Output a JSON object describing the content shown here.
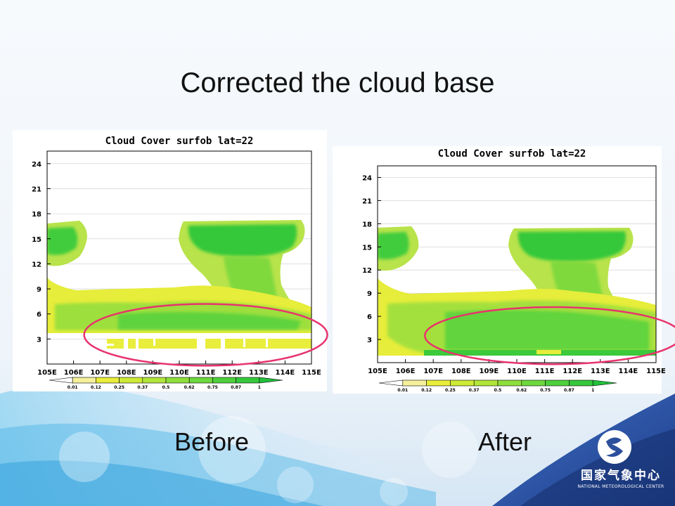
{
  "slide": {
    "title": "Corrected the cloud base",
    "before_label": "Before",
    "after_label": "After",
    "accent_color": "#2b4f9c",
    "highlight_color": "#e8336d"
  },
  "logo": {
    "name_cn": "国家气象中心",
    "name_en": "NATIONAL METEOROLOGICAL CENTER",
    "icon": "nmc-emblem-icon"
  },
  "chart_data": [
    {
      "type": "heatmap",
      "panel": "Before",
      "title": "Cloud Cover surfob lat=22",
      "x_ticks": [
        "105E",
        "106E",
        "107E",
        "108E",
        "109E",
        "110E",
        "111E",
        "112E",
        "113E",
        "114E",
        "115E"
      ],
      "y_ticks": [
        3,
        6,
        9,
        12,
        15,
        18,
        21,
        24
      ],
      "xlim": [
        105,
        115
      ],
      "ylim": [
        0,
        25.5
      ],
      "colorbar": {
        "labels": [
          "0.01",
          "0.12",
          "0.25",
          "0.37",
          "0.5",
          "0.62",
          "0.75",
          "0.87",
          "1"
        ],
        "colors": [
          "#ffffff",
          "#f5f09a",
          "#e8ee3a",
          "#cdea36",
          "#b2e53a",
          "#8fdf3c",
          "#6dd83d",
          "#4ed03c",
          "#35c83a",
          "#22c03a"
        ]
      },
      "cloud_regions": [
        {
          "lon": [
            105.1,
            106.5
          ],
          "height": [
            13.5,
            17.0
          ],
          "cover": 0.85
        },
        {
          "lon": [
            110.6,
            114.4
          ],
          "height": [
            12.5,
            17.0
          ],
          "cover": 0.87
        },
        {
          "lon": [
            105.0,
            115.0
          ],
          "height": [
            4.0,
            9.0
          ],
          "cover": 0.5
        },
        {
          "lon": [
            107.0,
            115.0
          ],
          "height": [
            4.0,
            6.5
          ],
          "cover": 0.6
        },
        {
          "lon": [
            107.2,
            115.0
          ],
          "height": [
            1.5,
            3.0
          ],
          "cover": 0.2
        }
      ],
      "highlight_ellipse": {
        "lon_center": 111.0,
        "height_center": 3.5,
        "lon_radius": 4.6,
        "height_radius": 3.7
      }
    },
    {
      "type": "heatmap",
      "panel": "After",
      "title": "Cloud Cover surfob lat=22",
      "x_ticks": [
        "105E",
        "106E",
        "107E",
        "108E",
        "109E",
        "110E",
        "111E",
        "112E",
        "113E",
        "114E",
        "115E"
      ],
      "y_ticks": [
        3,
        6,
        9,
        12,
        15,
        18,
        21,
        24
      ],
      "xlim": [
        105,
        115
      ],
      "ylim": [
        0,
        25.5
      ],
      "colorbar": {
        "labels": [
          "0.01",
          "0.12",
          "0.25",
          "0.37",
          "0.5",
          "0.62",
          "0.75",
          "0.87",
          "1"
        ],
        "colors": [
          "#ffffff",
          "#f5f09a",
          "#e8ee3a",
          "#cdea36",
          "#b2e53a",
          "#8fdf3c",
          "#6dd83d",
          "#4ed03c",
          "#35c83a",
          "#22c03a"
        ]
      },
      "cloud_regions": [
        {
          "lon": [
            105.0,
            106.5
          ],
          "height": [
            13.0,
            17.0
          ],
          "cover": 0.85
        },
        {
          "lon": [
            110.7,
            114.3
          ],
          "height": [
            12.5,
            17.0
          ],
          "cover": 0.87
        },
        {
          "lon": [
            105.0,
            115.0
          ],
          "height": [
            1.5,
            9.0
          ],
          "cover": 0.5
        },
        {
          "lon": [
            107.5,
            115.0
          ],
          "height": [
            1.5,
            6.5
          ],
          "cover": 0.62
        },
        {
          "lon": [
            108.0,
            115.0
          ],
          "height": [
            1.0,
            1.8
          ],
          "cover": 0.87
        }
      ],
      "highlight_ellipse": {
        "lon_center": 111.3,
        "height_center": 3.5,
        "lon_radius": 4.6,
        "height_radius": 3.7
      }
    }
  ]
}
